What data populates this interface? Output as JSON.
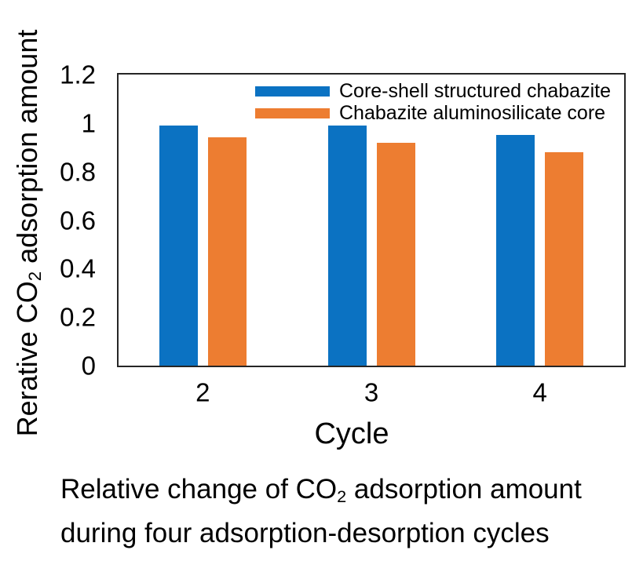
{
  "figure": {
    "ylabel": {
      "prefix": "Rerative CO",
      "sub": "2",
      "suffix": " adsorption amount"
    },
    "xlabel": "Cycle",
    "caption": {
      "line1_prefix": "Relative change of CO",
      "line1_sub": "2",
      "line1_suffix": " adsorption amount",
      "line2": "during four adsorption-desorption cycles"
    }
  },
  "chart_data": {
    "type": "bar",
    "categories": [
      "2",
      "3",
      "4"
    ],
    "series": [
      {
        "name": "Core-shell structured chabazite",
        "color": "#0B72C2",
        "values": [
          0.99,
          0.99,
          0.95
        ]
      },
      {
        "name": "Chabazite aluminosilicate core",
        "color": "#ED7D31",
        "values": [
          0.94,
          0.92,
          0.88
        ]
      }
    ],
    "xlabel": "Cycle",
    "ylabel": "Rerative CO2 adsorption amount",
    "ylim": [
      0,
      1.2
    ],
    "ytick_labels": [
      "0",
      "0.2",
      "0.4",
      "0.6",
      "0.8",
      "1",
      "1.2"
    ],
    "grid": false,
    "legend_position": "top-right-inside",
    "frame_color": "#262626"
  }
}
